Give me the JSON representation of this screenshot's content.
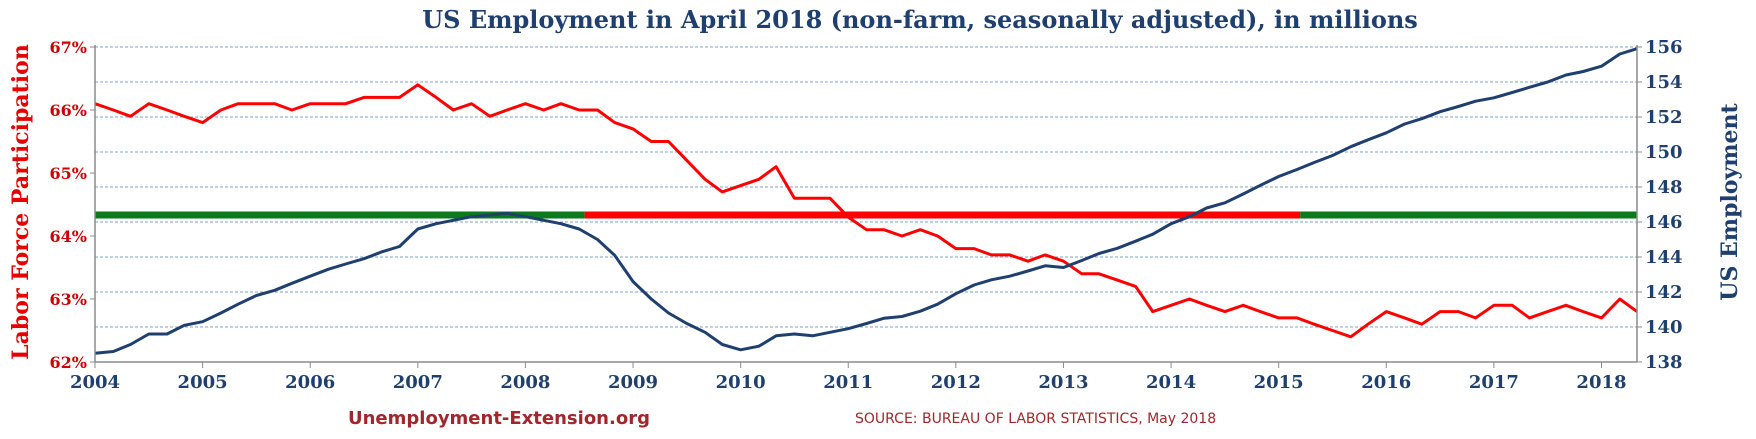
{
  "chart_data": {
    "type": "line",
    "title": "US Employment in April 2018 (non-farm, seasonally adjusted), in millions",
    "ylabel_left": "Labor Force Participation",
    "ylabel_right": "US Employment",
    "x_ticks": [
      "2004",
      "2005",
      "2006",
      "2007",
      "2008",
      "2009",
      "2010",
      "2011",
      "2012",
      "2013",
      "2014",
      "2015",
      "2016",
      "2017",
      "2018"
    ],
    "xlim": [
      2004,
      2018.33
    ],
    "y_left_ticks": [
      "62%",
      "63%",
      "64%",
      "65%",
      "66%",
      "67%"
    ],
    "y_left_range": [
      62,
      67
    ],
    "y_right_ticks": [
      "138",
      "140",
      "142",
      "144",
      "146",
      "148",
      "150",
      "152",
      "154",
      "156"
    ],
    "y_right_range": [
      138,
      156
    ],
    "grid": "horizontal dashed",
    "reference_line": {
      "value": 146.4,
      "axis": "right",
      "segments": [
        {
          "x_start": 2004.0,
          "x_end": 2008.55,
          "color": "#0a7a1a"
        },
        {
          "x_start": 2008.55,
          "x_end": 2015.2,
          "color": "#ff0000"
        },
        {
          "x_start": 2015.2,
          "x_end": 2018.33,
          "color": "#0a7a1a"
        }
      ]
    },
    "series": [
      {
        "name": "",
        "axis": "left",
        "color": "#ff0000",
        "x": [
          2004.0,
          2004.17,
          2004.33,
          2004.5,
          2004.67,
          2004.83,
          2005.0,
          2005.17,
          2005.33,
          2005.5,
          2005.67,
          2005.83,
          2006.0,
          2006.17,
          2006.33,
          2006.5,
          2006.67,
          2006.83,
          2007.0,
          2007.17,
          2007.33,
          2007.5,
          2007.67,
          2007.83,
          2008.0,
          2008.17,
          2008.33,
          2008.5,
          2008.67,
          2008.83,
          2009.0,
          2009.17,
          2009.33,
          2009.5,
          2009.67,
          2009.83,
          2010.0,
          2010.17,
          2010.33,
          2010.5,
          2010.67,
          2010.83,
          2011.0,
          2011.17,
          2011.33,
          2011.5,
          2011.67,
          2011.83,
          2012.0,
          2012.17,
          2012.33,
          2012.5,
          2012.67,
          2012.83,
          2013.0,
          2013.17,
          2013.33,
          2013.5,
          2013.67,
          2013.83,
          2014.0,
          2014.17,
          2014.33,
          2014.5,
          2014.67,
          2014.83,
          2015.0,
          2015.17,
          2015.33,
          2015.5,
          2015.67,
          2015.83,
          2016.0,
          2016.17,
          2016.33,
          2016.5,
          2016.67,
          2016.83,
          2017.0,
          2017.17,
          2017.33,
          2017.5,
          2017.67,
          2017.83,
          2018.0,
          2018.17,
          2018.33
        ],
        "values": [
          66.1,
          66.0,
          65.9,
          66.1,
          66.0,
          65.9,
          65.8,
          66.0,
          66.1,
          66.1,
          66.1,
          66.0,
          66.1,
          66.1,
          66.1,
          66.2,
          66.2,
          66.2,
          66.4,
          66.2,
          66.0,
          66.1,
          65.9,
          66.0,
          66.1,
          66.0,
          66.1,
          66.0,
          66.0,
          65.8,
          65.7,
          65.5,
          65.5,
          65.2,
          64.9,
          64.7,
          64.8,
          64.9,
          65.1,
          64.6,
          64.6,
          64.6,
          64.3,
          64.1,
          64.1,
          64.0,
          64.1,
          64.0,
          63.8,
          63.8,
          63.7,
          63.7,
          63.6,
          63.7,
          63.6,
          63.4,
          63.4,
          63.3,
          63.2,
          62.8,
          62.9,
          63.0,
          62.9,
          62.8,
          62.9,
          62.8,
          62.7,
          62.7,
          62.6,
          62.5,
          62.4,
          62.6,
          62.8,
          62.7,
          62.6,
          62.8,
          62.8,
          62.7,
          62.9,
          62.9,
          62.7,
          62.8,
          62.9,
          62.8,
          62.7,
          63.0,
          62.8
        ]
      },
      {
        "name": "",
        "axis": "right",
        "color": "#1f3f6e",
        "x": [
          2004.0,
          2004.17,
          2004.33,
          2004.5,
          2004.67,
          2004.83,
          2005.0,
          2005.17,
          2005.33,
          2005.5,
          2005.67,
          2005.83,
          2006.0,
          2006.17,
          2006.33,
          2006.5,
          2006.67,
          2006.83,
          2007.0,
          2007.17,
          2007.33,
          2007.5,
          2007.67,
          2007.83,
          2008.0,
          2008.17,
          2008.33,
          2008.5,
          2008.67,
          2008.83,
          2009.0,
          2009.17,
          2009.33,
          2009.5,
          2009.67,
          2009.83,
          2010.0,
          2010.17,
          2010.33,
          2010.5,
          2010.67,
          2010.83,
          2011.0,
          2011.17,
          2011.33,
          2011.5,
          2011.67,
          2011.83,
          2012.0,
          2012.17,
          2012.33,
          2012.5,
          2012.67,
          2012.83,
          2013.0,
          2013.17,
          2013.33,
          2013.5,
          2013.67,
          2013.83,
          2014.0,
          2014.17,
          2014.33,
          2014.5,
          2014.67,
          2014.83,
          2015.0,
          2015.17,
          2015.33,
          2015.5,
          2015.67,
          2015.83,
          2016.0,
          2016.17,
          2016.33,
          2016.5,
          2016.67,
          2016.83,
          2017.0,
          2017.17,
          2017.33,
          2017.5,
          2017.67,
          2017.83,
          2018.0,
          2018.17,
          2018.33
        ],
        "values": [
          138.5,
          138.6,
          139.0,
          139.6,
          139.6,
          140.1,
          140.3,
          140.8,
          141.3,
          141.8,
          142.1,
          142.5,
          142.9,
          143.3,
          143.6,
          143.9,
          144.3,
          144.6,
          145.6,
          145.9,
          146.1,
          146.3,
          146.4,
          146.5,
          146.3,
          146.1,
          145.9,
          145.6,
          145.0,
          144.1,
          142.6,
          141.6,
          140.8,
          140.2,
          139.7,
          139.0,
          138.7,
          138.9,
          139.5,
          139.6,
          139.5,
          139.7,
          139.9,
          140.2,
          140.5,
          140.6,
          140.9,
          141.3,
          141.9,
          142.4,
          142.7,
          142.9,
          143.2,
          143.5,
          143.4,
          143.8,
          144.2,
          144.5,
          144.9,
          145.3,
          145.9,
          146.3,
          146.8,
          147.1,
          147.6,
          148.1,
          148.6,
          149.0,
          149.4,
          149.8,
          150.3,
          150.7,
          151.1,
          151.6,
          151.9,
          152.3,
          152.6,
          152.9,
          153.1,
          153.4,
          153.7,
          154.0,
          154.4,
          154.6,
          154.9,
          155.6,
          155.9
        ]
      }
    ],
    "footer_left": "Unemployment-Extension.org",
    "footer_right": "SOURCE: BUREAU OF LABOR STATISTICS,  May 2018"
  }
}
